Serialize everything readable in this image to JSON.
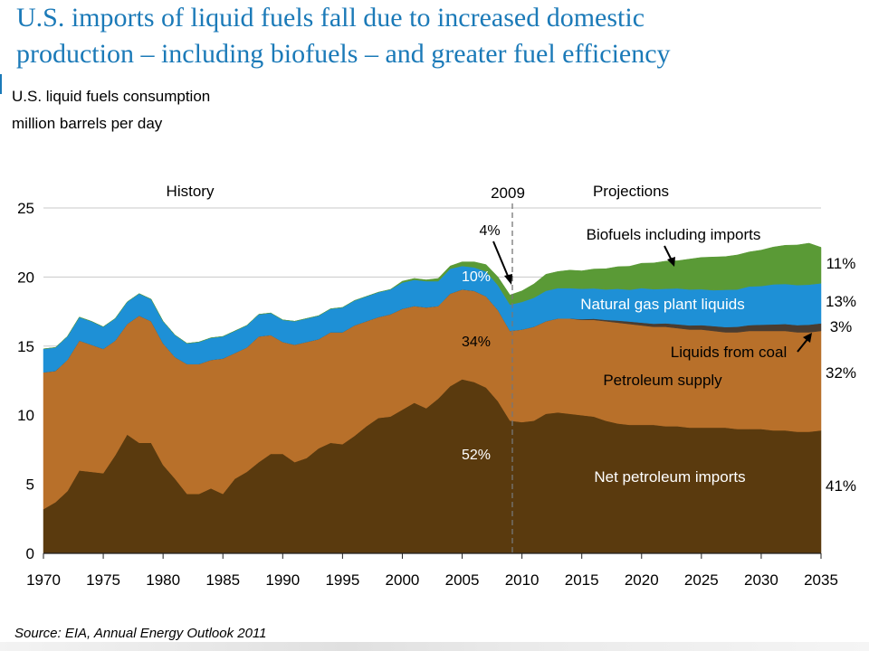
{
  "header": {
    "title_line1": "U.S. imports of liquid fuels fall due to increased domestic",
    "title_line2": "production – including biofuels – and greater fuel efficiency",
    "subtitle_line1": "U.S. liquid fuels consumption",
    "subtitle_line2": "million barrels per day"
  },
  "footer": {
    "source": "Source:  EIA, Annual Energy Outlook 2011"
  },
  "colors": {
    "imports": "#5a3a0e",
    "petroleum": "#b8702a",
    "coal": "#4a3c30",
    "ngpl": "#1e90d6",
    "biofuels": "#5a9a36",
    "title": "#1b7ab8"
  },
  "chart_data": {
    "type": "area",
    "stacked": true,
    "x": [
      1970,
      1971,
      1972,
      1973,
      1974,
      1975,
      1976,
      1977,
      1978,
      1979,
      1980,
      1981,
      1982,
      1983,
      1984,
      1985,
      1986,
      1987,
      1988,
      1989,
      1990,
      1991,
      1992,
      1993,
      1994,
      1995,
      1996,
      1997,
      1998,
      1999,
      2000,
      2001,
      2002,
      2003,
      2004,
      2005,
      2006,
      2007,
      2008,
      2009,
      2010,
      2011,
      2012,
      2013,
      2014,
      2015,
      2016,
      2017,
      2018,
      2019,
      2020,
      2021,
      2022,
      2023,
      2024,
      2025,
      2026,
      2027,
      2028,
      2029,
      2030,
      2031,
      2032,
      2033,
      2034,
      2035
    ],
    "series": [
      {
        "name": "Net petroleum imports",
        "values": [
          3.2,
          3.7,
          4.5,
          6.0,
          5.9,
          5.8,
          7.1,
          8.6,
          8.0,
          8.0,
          6.4,
          5.4,
          4.3,
          4.3,
          4.7,
          4.3,
          5.4,
          5.9,
          6.6,
          7.2,
          7.2,
          6.6,
          6.9,
          7.6,
          8.0,
          7.9,
          8.5,
          9.2,
          9.8,
          9.9,
          10.4,
          10.9,
          10.5,
          11.2,
          12.1,
          12.6,
          12.4,
          12.0,
          11.0,
          9.6,
          9.5,
          9.6,
          10.1,
          10.2,
          10.1,
          10.0,
          9.9,
          9.6,
          9.4,
          9.3,
          9.3,
          9.3,
          9.2,
          9.2,
          9.1,
          9.1,
          9.1,
          9.1,
          9.0,
          9.0,
          9.0,
          8.9,
          8.9,
          8.8,
          8.8,
          8.9
        ]
      },
      {
        "name": "Petroleum supply",
        "values": [
          9.9,
          9.5,
          9.5,
          9.4,
          9.2,
          9.0,
          8.3,
          8.0,
          9.2,
          8.8,
          8.8,
          8.8,
          9.4,
          9.4,
          9.3,
          9.8,
          9.1,
          9.0,
          9.1,
          8.6,
          8.1,
          8.5,
          8.4,
          7.9,
          8.0,
          8.1,
          8.0,
          7.6,
          7.3,
          7.4,
          7.3,
          7.0,
          7.3,
          6.7,
          6.7,
          6.5,
          6.6,
          6.6,
          6.6,
          6.5,
          6.7,
          6.8,
          6.7,
          6.8,
          6.9,
          6.9,
          7.0,
          7.2,
          7.3,
          7.3,
          7.2,
          7.1,
          7.2,
          7.1,
          7.1,
          7.1,
          7.0,
          6.9,
          7.0,
          7.1,
          7.1,
          7.2,
          7.2,
          7.2,
          7.2,
          7.2
        ]
      },
      {
        "name": "Liquids from coal",
        "values": [
          0,
          0,
          0,
          0,
          0,
          0,
          0,
          0,
          0,
          0,
          0,
          0,
          0,
          0,
          0,
          0,
          0,
          0,
          0,
          0,
          0,
          0,
          0,
          0,
          0,
          0,
          0,
          0,
          0,
          0,
          0,
          0,
          0,
          0,
          0,
          0,
          0,
          0,
          0,
          0,
          0,
          0,
          0,
          0,
          0,
          0.05,
          0.08,
          0.1,
          0.15,
          0.18,
          0.2,
          0.22,
          0.25,
          0.28,
          0.3,
          0.32,
          0.35,
          0.38,
          0.4,
          0.42,
          0.45,
          0.47,
          0.5,
          0.52,
          0.55,
          0.55
        ]
      },
      {
        "name": "Natural gas plant liquids",
        "values": [
          1.7,
          1.7,
          1.7,
          1.7,
          1.7,
          1.6,
          1.6,
          1.6,
          1.6,
          1.6,
          1.6,
          1.6,
          1.5,
          1.6,
          1.6,
          1.6,
          1.6,
          1.6,
          1.6,
          1.6,
          1.6,
          1.7,
          1.7,
          1.7,
          1.7,
          1.8,
          1.8,
          1.8,
          1.8,
          1.8,
          1.9,
          1.9,
          1.9,
          1.8,
          1.8,
          1.7,
          1.7,
          1.8,
          1.8,
          1.9,
          2.0,
          2.1,
          2.2,
          2.2,
          2.2,
          2.2,
          2.2,
          2.2,
          2.3,
          2.3,
          2.5,
          2.5,
          2.5,
          2.6,
          2.6,
          2.6,
          2.6,
          2.7,
          2.7,
          2.8,
          2.8,
          2.9,
          2.9,
          2.9,
          2.9,
          2.9
        ]
      },
      {
        "name": "Biofuels including imports",
        "values": [
          0,
          0,
          0,
          0,
          0,
          0,
          0,
          0,
          0,
          0,
          0,
          0,
          0,
          0,
          0,
          0,
          0,
          0,
          0,
          0,
          0,
          0,
          0,
          0,
          0,
          0,
          0,
          0,
          0,
          0,
          0.1,
          0.1,
          0.1,
          0.2,
          0.2,
          0.3,
          0.4,
          0.5,
          0.6,
          0.7,
          0.8,
          1.0,
          1.2,
          1.2,
          1.3,
          1.3,
          1.4,
          1.5,
          1.6,
          1.7,
          1.8,
          1.9,
          2.0,
          2.0,
          2.2,
          2.3,
          2.4,
          2.4,
          2.5,
          2.5,
          2.6,
          2.7,
          2.8,
          2.9,
          3.0,
          2.6
        ]
      }
    ],
    "xlim": [
      1970,
      2035
    ],
    "ylim": [
      0,
      25
    ],
    "x_ticks": [
      "1970",
      "1975",
      "1980",
      "1985",
      "1990",
      "1995",
      "2000",
      "2005",
      "2010",
      "2015",
      "2020",
      "2025",
      "2030",
      "2035"
    ],
    "y_ticks": [
      "0",
      "5",
      "10",
      "15",
      "20",
      "25"
    ],
    "grid": true,
    "divider_year": 2009,
    "annotations": {
      "history": "History",
      "projections": "Projections",
      "divider_label": "2009",
      "pct_biofuels_2009": "4%",
      "pct_ngpl_2009": "10%",
      "pct_petroleum_2009": "34%",
      "pct_imports_2009": "52%",
      "pct_biofuels_2035": "11%",
      "pct_ngpl_2035": "13%",
      "pct_coal_2035": "3%",
      "pct_petroleum_2035": "32%",
      "pct_imports_2035": "41%",
      "label_biofuels": "Biofuels including imports",
      "label_ngpl": "Natural gas plant liquids",
      "label_coal": "Liquids from coal",
      "label_petroleum": "Petroleum supply",
      "label_imports": "Net petroleum imports"
    }
  }
}
